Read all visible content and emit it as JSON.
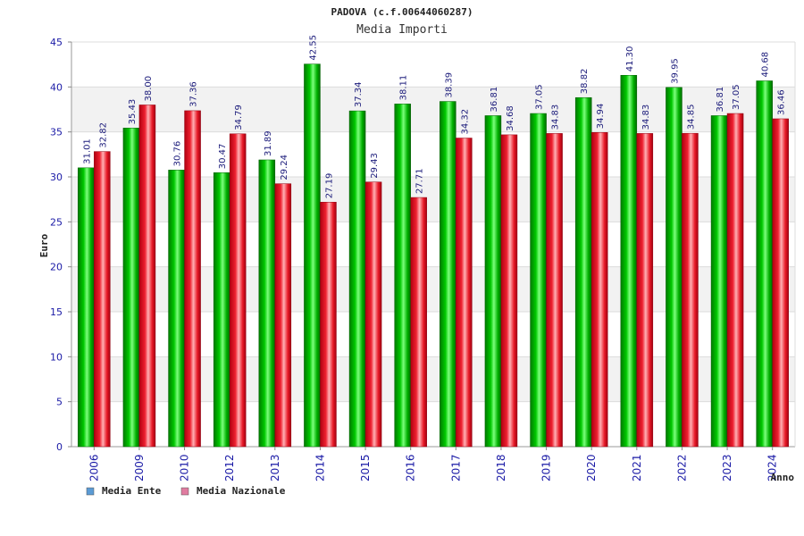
{
  "chart_data": {
    "type": "bar",
    "title": "PADOVA (c.f.00644060287)",
    "subtitle": "Media Importi",
    "xlabel": "Anno",
    "ylabel": "Euro",
    "ylim": [
      0,
      45
    ],
    "yticks": [
      0,
      5,
      10,
      15,
      20,
      25,
      30,
      35,
      40,
      45
    ],
    "grid": true,
    "legend_position": "bottom-left",
    "categories": [
      "2006",
      "2009",
      "2010",
      "2012",
      "2013",
      "2014",
      "2015",
      "2016",
      "2017",
      "2018",
      "2019",
      "2020",
      "2021",
      "2022",
      "2023",
      "2024"
    ],
    "series": [
      {
        "name": "Media Ente",
        "color": "#00c000",
        "legend_color": "#5b9bd5",
        "values": [
          31.01,
          35.43,
          30.76,
          30.47,
          31.89,
          42.55,
          37.34,
          38.11,
          38.39,
          36.81,
          37.05,
          38.82,
          41.3,
          39.95,
          36.81,
          40.68
        ],
        "labels": [
          "31.01",
          "35.43",
          "30.76",
          "30.47",
          "31.89",
          "42.55",
          "37.34",
          "38.11",
          "38.39",
          "36.81",
          "37.05",
          "38.82",
          "41.30",
          "39.95",
          "36.81",
          "40.68"
        ]
      },
      {
        "name": "Media Nazionale",
        "color": "#e8202a",
        "legend_color": "#e07ba0",
        "values": [
          32.82,
          38.0,
          37.36,
          34.79,
          29.24,
          27.19,
          29.43,
          27.71,
          34.32,
          34.68,
          34.83,
          34.94,
          34.83,
          34.85,
          37.05,
          36.46
        ],
        "labels": [
          "32.82",
          "38.00",
          "37.36",
          "34.79",
          "29.24",
          "27.19",
          "29.43",
          "27.71",
          "34.32",
          "34.68",
          "34.83",
          "34.94",
          "34.83",
          "34.85",
          "37.05",
          "36.46"
        ]
      }
    ]
  }
}
